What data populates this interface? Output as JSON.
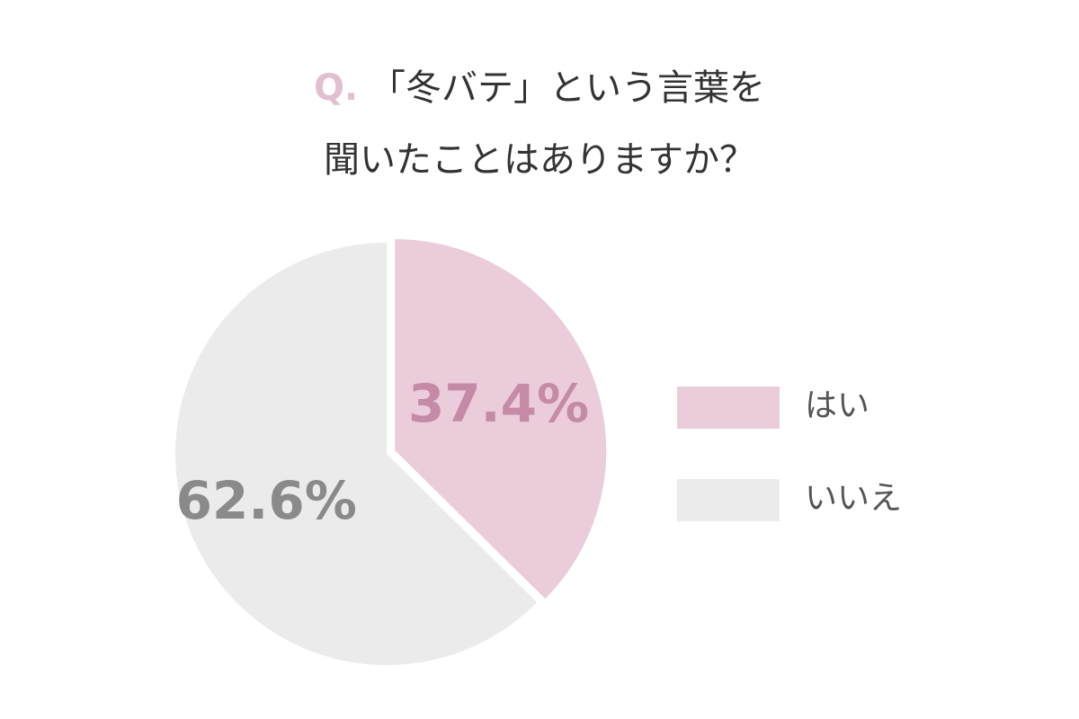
{
  "chart_data": {
    "type": "pie",
    "question_label": "Q.",
    "title": [
      "「冬バテ」という言葉を",
      "聞いたことはありますか？"
    ],
    "categories": [
      "はい",
      "いいえ"
    ],
    "values": [
      37.4,
      62.6
    ],
    "value_labels": [
      "37.4%",
      "62.6%"
    ],
    "colors": [
      "#ebccdb",
      "#ebebeb"
    ],
    "label_colors": [
      "#c48aa6",
      "#8a8a8a"
    ],
    "question_color": "#e2bfd0",
    "explode": [
      true,
      false
    ],
    "legend": "right"
  }
}
